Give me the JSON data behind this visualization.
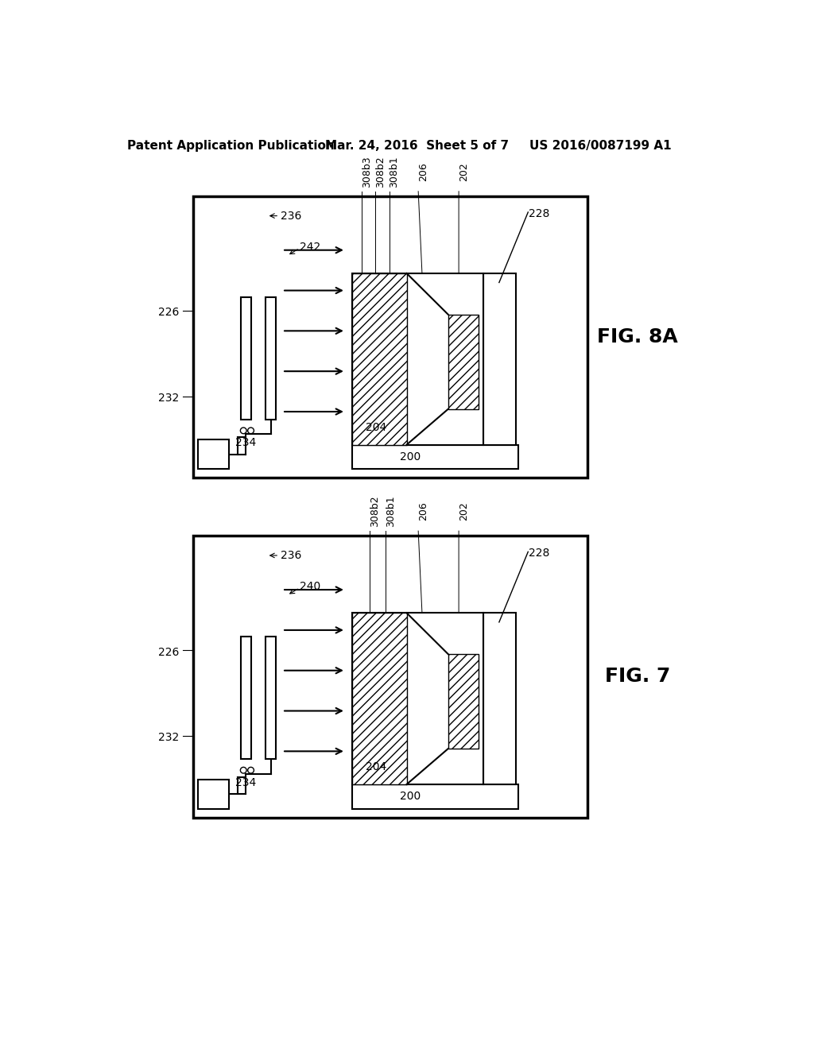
{
  "bg_color": "#ffffff",
  "line_color": "#000000",
  "fig_width": 10.24,
  "fig_height": 13.2,
  "header_left": "Patent Application Publication",
  "header_center": "Mar. 24, 2016  Sheet 5 of 7",
  "header_right": "US 2016/0087199 A1"
}
